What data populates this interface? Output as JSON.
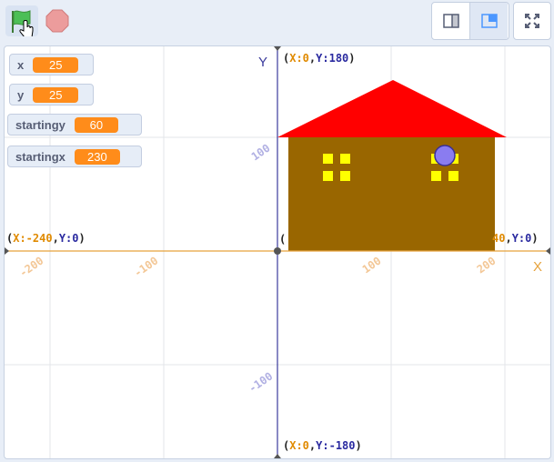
{
  "toolbar": {
    "green_flag": "green-flag-icon",
    "stop": "stop-icon",
    "small_stage": "small-stage-icon",
    "normal_stage": "normal-stage-icon",
    "fullscreen": "fullscreen-icon"
  },
  "monitors": [
    {
      "label": "x",
      "value": "25"
    },
    {
      "label": "y",
      "value": "25"
    },
    {
      "label": "startingy",
      "value": "60"
    },
    {
      "label": "startingx",
      "value": "230"
    }
  ],
  "axes": {
    "y_label": "Y",
    "x_label": "X",
    "top": {
      "x": "X:0",
      "y": "Y:180"
    },
    "bottom": {
      "x": "X:0",
      "y": "Y:-180"
    },
    "left": {
      "x": "X:-240",
      "y": "Y:0"
    },
    "right_fragment": "40",
    "right_y": "Y:0",
    "x_ticks": [
      "-200",
      "-100",
      "100",
      "200"
    ],
    "y_ticks": [
      "100",
      "-100"
    ]
  },
  "colors": {
    "roof": "#ff0000",
    "wall": "#996600",
    "window": "#ffff00",
    "sprite": "#8a7cf0",
    "x_axis": "#e6a23c",
    "y_axis": "#3b3b9c"
  }
}
